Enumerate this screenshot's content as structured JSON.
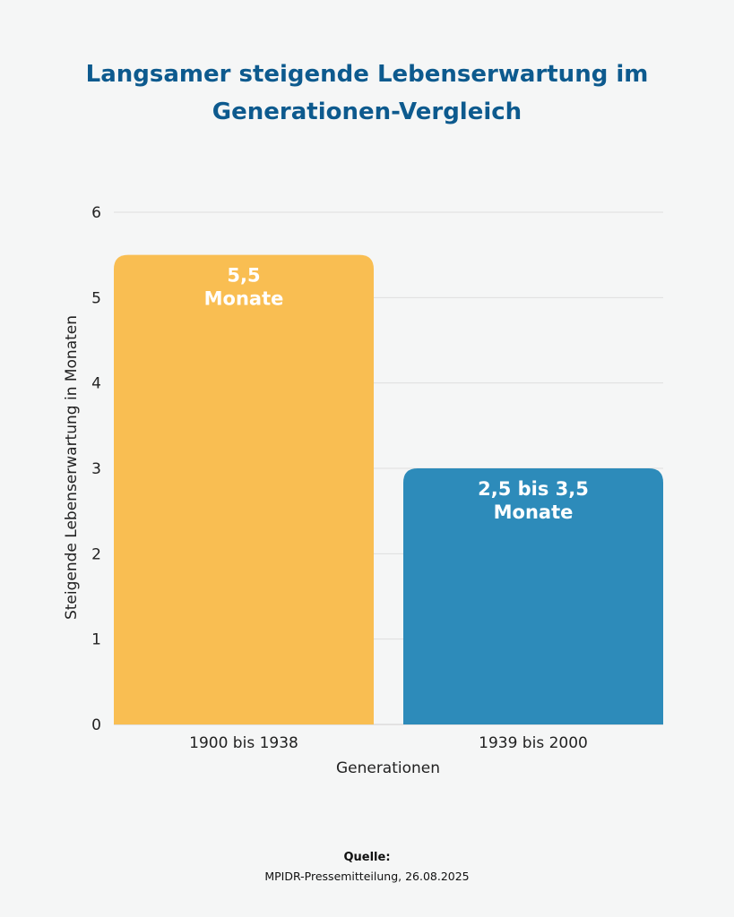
{
  "chart_data": {
    "type": "bar",
    "title": "Langsamer steigende Lebenserwartung im Generationen-Vergleich",
    "xlabel": "Generationen",
    "ylabel": "Steigende Lebenserwartung in Monaten",
    "categories": [
      "1900 bis 1938",
      "1939 bis 2000"
    ],
    "values": [
      5.5,
      3
    ],
    "data_labels": [
      [
        "5,5",
        "Monate"
      ],
      [
        "2,5 bis 3,5",
        "Monate"
      ]
    ],
    "colors": [
      "#f9be52",
      "#2d8bba"
    ],
    "ylim": [
      0,
      6
    ],
    "yticks": [
      "0",
      "1",
      "2",
      "3",
      "4",
      "5",
      "6"
    ],
    "grid": true,
    "legend": "none"
  },
  "source": {
    "heading": "Quelle:",
    "text": "MPIDR-Pressemitteilung, 26.08.2025"
  }
}
